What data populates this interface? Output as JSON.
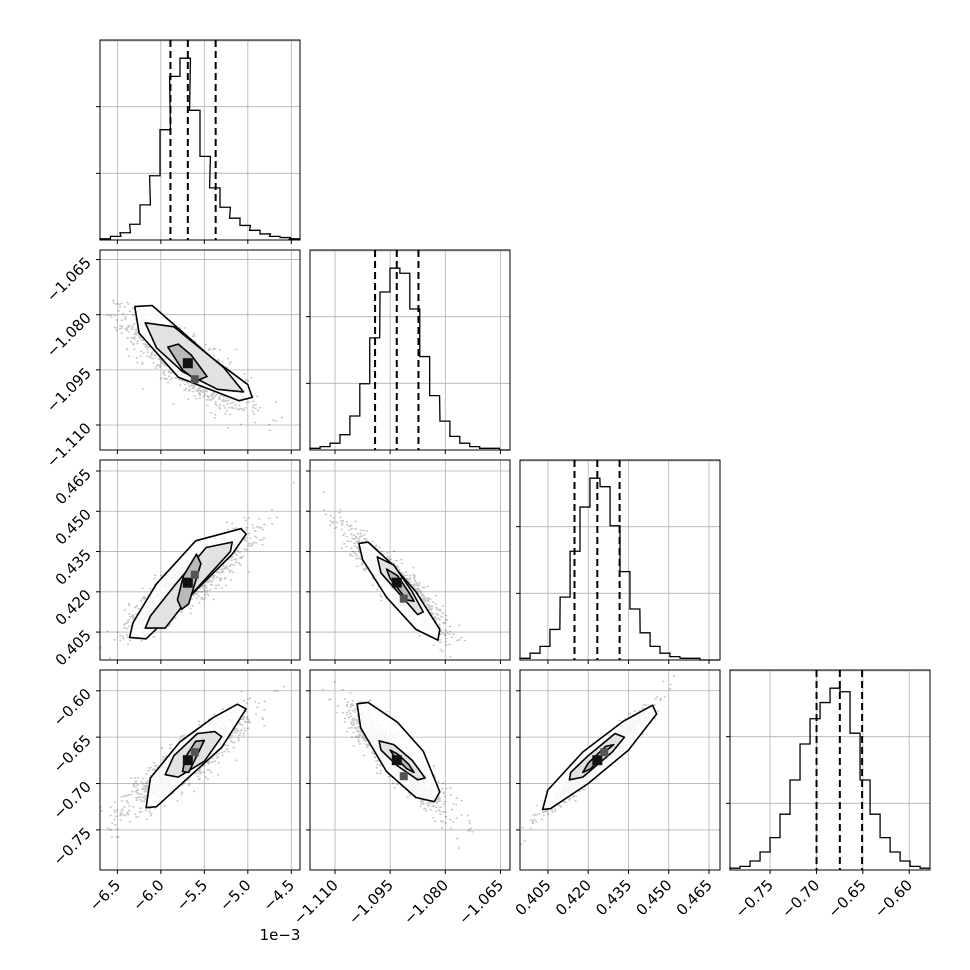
{
  "chart_data": {
    "type": "scatter",
    "subtype": "corner-plot",
    "title": "",
    "grid": true,
    "parameters": [
      {
        "range": [
          -0.0067,
          -0.0044
        ],
        "ticks": [
          -6.5,
          -6.0,
          -5.5,
          -5.0,
          -4.5
        ],
        "tick_labels": [
          "−6.5",
          "−6.0",
          "−5.5",
          "−5.0",
          "−4.5"
        ],
        "tick_scale": 0.001,
        "offset_label": "1e−3",
        "quantiles": [
          -0.00589,
          -0.00569,
          -0.00537
        ],
        "hist_x": [
          -0.00664,
          -0.00652,
          -0.00641,
          -0.0063,
          -0.00618,
          -0.00607,
          -0.00595,
          -0.00584,
          -0.00572,
          -0.00561,
          -0.00549,
          -0.00538,
          -0.00526,
          -0.00515,
          -0.00503,
          -0.00492,
          -0.0048,
          -0.00469,
          -0.00457,
          -0.00446
        ],
        "hist_counts": [
          1,
          3,
          6,
          13,
          29,
          53,
          91,
          135,
          150,
          107,
          69,
          43,
          27,
          18,
          12,
          8,
          5,
          3,
          2,
          1
        ]
      },
      {
        "range": [
          -1.1168,
          -1.0624
        ],
        "ticks": [
          -1.11,
          -1.095,
          -1.08,
          -1.065
        ],
        "tick_labels": [
          "−1.110",
          "−1.095",
          "−1.080",
          "−1.065"
        ],
        "quantiles": [
          -1.0991,
          -1.0932,
          -1.0873
        ],
        "hist_x": [
          -1.1154,
          -1.1127,
          -1.11,
          -1.1073,
          -1.1046,
          -1.1019,
          -1.0992,
          -1.0964,
          -1.0937,
          -1.091,
          -1.0883,
          -1.0856,
          -1.0829,
          -1.0801,
          -1.0774,
          -1.0747,
          -1.072,
          -1.0693,
          -1.0666,
          -1.0638
        ],
        "hist_counts": [
          1,
          2,
          4,
          9,
          20,
          39,
          66,
          93,
          107,
          104,
          83,
          55,
          32,
          17,
          8,
          4,
          2,
          1,
          1,
          0
        ]
      },
      {
        "range": [
          0.3946,
          0.4691
        ],
        "ticks": [
          0.405,
          0.42,
          0.435,
          0.45,
          0.465
        ],
        "tick_labels": [
          "0.405",
          "0.420",
          "0.435",
          "0.450",
          "0.465"
        ],
        "quantiles": [
          0.4149,
          0.4234,
          0.4317
        ],
        "hist_x": [
          0.3965,
          0.4002,
          0.4039,
          0.4076,
          0.4114,
          0.4151,
          0.4188,
          0.4225,
          0.4263,
          0.43,
          0.4337,
          0.4374,
          0.4412,
          0.4449,
          0.4486,
          0.4523,
          0.4561,
          0.4598,
          0.4635,
          0.4672
        ],
        "hist_counts": [
          1,
          4,
          8,
          18,
          37,
          64,
          90,
          107,
          102,
          79,
          52,
          30,
          16,
          8,
          4,
          2,
          1,
          1,
          0,
          0
        ]
      },
      {
        "range": [
          -0.7932,
          -0.5776
        ],
        "ticks": [
          -0.75,
          -0.7,
          -0.65,
          -0.6
        ],
        "tick_labels": [
          "−0.75",
          "−0.70",
          "−0.65",
          "−0.60"
        ],
        "quantiles": [
          -0.6999,
          -0.6748,
          -0.6508
        ],
        "hist_x": [
          -0.7878,
          -0.777,
          -0.7662,
          -0.7554,
          -0.7447,
          -0.7339,
          -0.7231,
          -0.7123,
          -0.7015,
          -0.6907,
          -0.68,
          -0.6692,
          -0.6584,
          -0.6476,
          -0.6368,
          -0.626,
          -0.6152,
          -0.6045,
          -0.5937,
          -0.5829
        ],
        "hist_counts": [
          1,
          2,
          5,
          10,
          18,
          31,
          50,
          70,
          84,
          93,
          101,
          99,
          76,
          50,
          31,
          18,
          10,
          5,
          2,
          1
        ]
      }
    ],
    "pairs": [
      {
        "x": 0,
        "y": 1,
        "mean": [
          -0.00569,
          -1.0932
        ],
        "sd": [
          0.00032,
          0.0059
        ],
        "corr": -0.82,
        "contours": [
          [
            [
              -0.00592,
              -1.0888
            ],
            [
              -0.0058,
              -1.088
            ],
            [
              -0.00565,
              -1.091
            ],
            [
              -0.00547,
              -1.0968
            ],
            [
              -0.00559,
              -1.098
            ],
            [
              -0.00575,
              -1.095
            ]
          ],
          [
            [
              -0.00618,
              -1.0822
            ],
            [
              -0.00585,
              -1.0833
            ],
            [
              -0.00528,
              -1.0943
            ],
            [
              -0.00505,
              -1.101
            ],
            [
              -0.00535,
              -1.1003
            ],
            [
              -0.00575,
              -1.0955
            ],
            [
              -0.00605,
              -1.089
            ]
          ],
          [
            [
              -0.0063,
              -1.0778
            ],
            [
              -0.0061,
              -1.0775
            ],
            [
              -0.0054,
              -1.092
            ],
            [
              -0.005,
              -1.099
            ],
            [
              -0.00495,
              -1.1025
            ],
            [
              -0.0051,
              -1.1034
            ],
            [
              -0.0058,
              -1.097
            ],
            [
              -0.00625,
              -1.085
            ]
          ]
        ]
      },
      {
        "x": 0,
        "y": 2,
        "mean": [
          -0.00569,
          0.4234
        ],
        "sd": [
          0.00032,
          0.0084
        ],
        "corr": 0.88,
        "contours": [
          [
            [
              -0.00576,
              0.4135
            ],
            [
              -0.00568,
              0.4155
            ],
            [
              -0.00554,
              0.4305
            ],
            [
              -0.00559,
              0.434
            ],
            [
              -0.00574,
              0.426
            ],
            [
              -0.00581,
              0.417
            ]
          ],
          [
            [
              -0.00618,
              0.4065
            ],
            [
              -0.00595,
              0.4065
            ],
            [
              -0.00565,
              0.419
            ],
            [
              -0.0052,
              0.435
            ],
            [
              -0.00518,
              0.4385
            ],
            [
              -0.00548,
              0.4365
            ],
            [
              -0.00585,
              0.422
            ],
            [
              -0.00612,
              0.411
            ]
          ],
          [
            [
              -0.00636,
              0.403
            ],
            [
              -0.00617,
              0.4025
            ],
            [
              -0.0058,
              0.414
            ],
            [
              -0.00518,
              0.434
            ],
            [
              -0.00502,
              0.4415
            ],
            [
              -0.00508,
              0.4435
            ],
            [
              -0.0056,
              0.439
            ],
            [
              -0.00605,
              0.423
            ],
            [
              -0.00632,
              0.4085
            ]
          ]
        ]
      },
      {
        "x": 0,
        "y": 3,
        "mean": [
          -0.00569,
          -0.6748
        ],
        "sd": [
          0.00032,
          0.0245
        ],
        "corr": 0.9,
        "contours": [
          [
            [
              -0.00575,
              -0.687
            ],
            [
              -0.00568,
              -0.688
            ],
            [
              -0.00556,
              -0.665
            ],
            [
              -0.0055,
              -0.6535
            ],
            [
              -0.0056,
              -0.6545
            ],
            [
              -0.00572,
              -0.672
            ]
          ],
          [
            [
              -0.00595,
              -0.6905
            ],
            [
              -0.0058,
              -0.693
            ],
            [
              -0.0055,
              -0.676
            ],
            [
              -0.0053,
              -0.6495
            ],
            [
              -0.00538,
              -0.644
            ],
            [
              -0.00558,
              -0.646
            ],
            [
              -0.00585,
              -0.67
            ]
          ],
          [
            [
              -0.00617,
              -0.726
            ],
            [
              -0.00605,
              -0.725
            ],
            [
              -0.0057,
              -0.695
            ],
            [
              -0.0053,
              -0.661
            ],
            [
              -0.00502,
              -0.6195
            ],
            [
              -0.00512,
              -0.6145
            ],
            [
              -0.0054,
              -0.629
            ],
            [
              -0.00578,
              -0.655
            ],
            [
              -0.00612,
              -0.694
            ]
          ]
        ]
      },
      {
        "x": 1,
        "y": 2,
        "mean": [
          -1.0932,
          0.4234
        ],
        "sd": [
          0.0059,
          0.0084
        ],
        "corr": -0.92,
        "contours": [
          [
            [
              -1.096,
              0.4285
            ],
            [
              -1.093,
              0.426
            ],
            [
              -1.09,
              0.42
            ],
            [
              -1.0885,
              0.4165
            ],
            [
              -1.0905,
              0.417
            ],
            [
              -1.095,
              0.425
            ]
          ],
          [
            [
              -1.0985,
              0.433
            ],
            [
              -1.094,
              0.43
            ],
            [
              -1.089,
              0.42
            ],
            [
              -1.086,
              0.4125
            ],
            [
              -1.0875,
              0.4115
            ],
            [
              -1.092,
              0.4185
            ],
            [
              -1.0975,
              0.427
            ]
          ],
          [
            [
              -1.1035,
              0.438
            ],
            [
              -1.101,
              0.4385
            ],
            [
              -1.095,
              0.431
            ],
            [
              -1.088,
              0.42
            ],
            [
              -1.0815,
              0.406
            ],
            [
              -1.082,
              0.402
            ],
            [
              -1.088,
              0.406
            ],
            [
              -1.096,
              0.418
            ],
            [
              -1.1025,
              0.432
            ]
          ]
        ]
      },
      {
        "x": 1,
        "y": 3,
        "mean": [
          -1.0932,
          -0.6748
        ],
        "sd": [
          0.0059,
          0.0245
        ],
        "corr": -0.9,
        "contours": [
          [
            [
              -1.095,
              -0.664
            ],
            [
              -1.093,
              -0.668
            ],
            [
              -1.09,
              -0.679
            ],
            [
              -1.0885,
              -0.688
            ],
            [
              -1.0905,
              -0.684
            ],
            [
              -1.094,
              -0.67
            ]
          ],
          [
            [
              -1.098,
              -0.654
            ],
            [
              -1.094,
              -0.658
            ],
            [
              -1.089,
              -0.675
            ],
            [
              -1.0855,
              -0.694
            ],
            [
              -1.0875,
              -0.696
            ],
            [
              -1.093,
              -0.681
            ],
            [
              -1.0975,
              -0.664
            ]
          ],
          [
            [
              -1.104,
              -0.614
            ],
            [
              -1.101,
              -0.6125
            ],
            [
              -1.093,
              -0.634
            ],
            [
              -1.086,
              -0.665
            ],
            [
              -1.0815,
              -0.709
            ],
            [
              -1.083,
              -0.7195
            ],
            [
              -1.088,
              -0.715
            ],
            [
              -1.096,
              -0.687
            ],
            [
              -1.103,
              -0.64
            ]
          ]
        ]
      },
      {
        "x": 2,
        "y": 3,
        "mean": [
          0.4234,
          -0.6748
        ],
        "sd": [
          0.0084,
          0.0245
        ],
        "corr": 0.97,
        "contours": [
          [
            [
              0.418,
              -0.688
            ],
            [
              0.421,
              -0.684
            ],
            [
              0.427,
              -0.664
            ],
            [
              0.4295,
              -0.658
            ],
            [
              0.4265,
              -0.66
            ],
            [
              0.42,
              -0.678
            ]
          ],
          [
            [
              0.413,
              -0.696
            ],
            [
              0.418,
              -0.693
            ],
            [
              0.429,
              -0.666
            ],
            [
              0.4335,
              -0.65
            ],
            [
              0.43,
              -0.646
            ],
            [
              0.42,
              -0.67
            ],
            [
              0.4135,
              -0.688
            ]
          ],
          [
            [
              0.403,
              -0.728
            ],
            [
              0.406,
              -0.727
            ],
            [
              0.42,
              -0.7
            ],
            [
              0.435,
              -0.664
            ],
            [
              0.4455,
              -0.625
            ],
            [
              0.444,
              -0.6155
            ],
            [
              0.433,
              -0.633
            ],
            [
              0.418,
              -0.666
            ],
            [
              0.405,
              -0.707
            ]
          ]
        ]
      }
    ]
  }
}
